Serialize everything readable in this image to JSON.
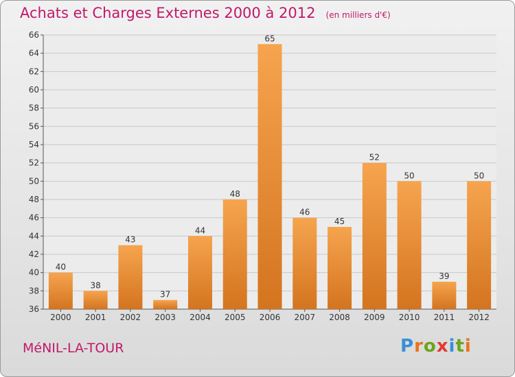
{
  "title": "Achats et Charges Externes 2000 à 2012",
  "unit": "(en milliers d'€)",
  "commune": "MéNIL-LA-TOUR",
  "brand": {
    "text": "Proxiti",
    "letter_colors": [
      "#3a8fd6",
      "#e8731c",
      "#6aa51c",
      "#e03b2f",
      "#3a8fd6",
      "#6aa51c",
      "#e8731c"
    ]
  },
  "colors": {
    "bar_light": "#f6a44f",
    "bar_dark": "#d4741f",
    "accent": "#c0186a"
  },
  "chart_data": {
    "type": "bar",
    "categories": [
      "2000",
      "2001",
      "2002",
      "2003",
      "2004",
      "2005",
      "2006",
      "2007",
      "2008",
      "2009",
      "2010",
      "2011",
      "2012"
    ],
    "values": [
      40,
      38,
      43,
      37,
      44,
      48,
      65,
      46,
      45,
      52,
      50,
      39,
      50
    ],
    "ylim": [
      36,
      66
    ],
    "yticks": [
      36,
      38,
      40,
      42,
      44,
      46,
      48,
      50,
      52,
      54,
      56,
      58,
      60,
      62,
      64,
      66
    ],
    "grid": true
  }
}
